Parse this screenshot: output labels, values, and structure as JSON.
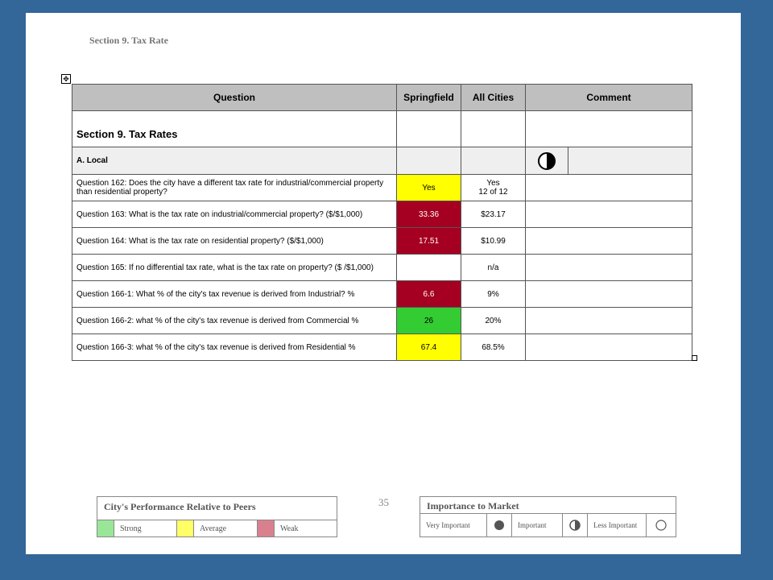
{
  "section_heading": "Section 9. Tax Rate",
  "table": {
    "headers": {
      "question": "Question",
      "city": "Springfield",
      "all": "All Cities",
      "comment": "Comment"
    },
    "section_title": "Section 9. Tax Rates",
    "subsection_label": "A. Local",
    "rows": [
      {
        "question": "Question 162: Does the city have a different tax rate for industrial/commercial property than residential property?",
        "city": "Yes",
        "all_line1": "Yes",
        "all_line2": "12 of 12",
        "rating": "yellow"
      },
      {
        "question": "Question 163: What is the tax rate on industrial/commercial property? ($/$1,000)",
        "city": "33.36",
        "all_line1": "$23.17",
        "all_line2": "",
        "rating": "red"
      },
      {
        "question": "Question 164: What is the tax rate on residential property? ($/$1,000)",
        "city": "17.51",
        "all_line1": "$10.99",
        "all_line2": "",
        "rating": "red"
      },
      {
        "question": "Question 165: If no differential tax rate, what is the tax rate on property? ($ /$1,000)",
        "city": "",
        "all_line1": "n/a",
        "all_line2": "",
        "rating": "none"
      },
      {
        "question": "Question 166-1: What % of the city's tax revenue is derived from Industrial? %",
        "city": "6.6",
        "all_line1": "9%",
        "all_line2": "",
        "rating": "red"
      },
      {
        "question": "Question 166-2: what % of the city's tax revenue is derived from Commercial %",
        "city": "26",
        "all_line1": "20%",
        "all_line2": "",
        "rating": "green"
      },
      {
        "question": "Question 166-3: what % of the city's tax revenue is derived from Residential %",
        "city": "67.4",
        "all_line1": "68.5%",
        "all_line2": "",
        "rating": "yellow"
      }
    ]
  },
  "page_number": "35",
  "performance_legend": {
    "title": "City's Performance Relative to Peers",
    "items": [
      {
        "label": "Strong",
        "color": "#99e699"
      },
      {
        "label": "Average",
        "color": "#ffff66"
      },
      {
        "label": "Weak",
        "color": "#d9808f"
      }
    ]
  },
  "importance_legend": {
    "title": "Importance to Market",
    "items": [
      {
        "label": "Very Important",
        "icon": "full-circle-icon"
      },
      {
        "label": "Important",
        "icon": "half-circle-icon"
      },
      {
        "label": "Less Important",
        "icon": "empty-circle-icon"
      }
    ]
  },
  "colors": {
    "red": "#a50021",
    "yellow": "#ffff00",
    "green": "#33cc33",
    "background": "#336699"
  }
}
